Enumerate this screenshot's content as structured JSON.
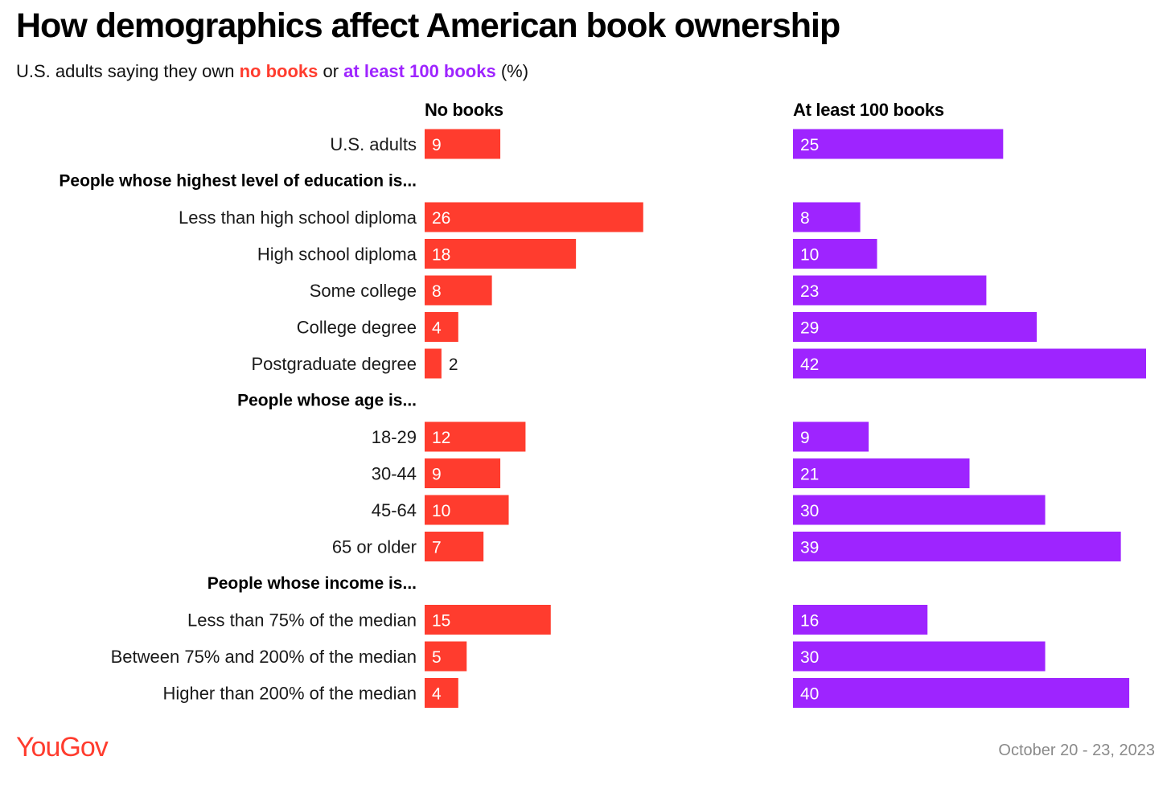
{
  "title": "How demographics affect American book ownership",
  "subtitle": {
    "prefix": "U.S. adults saying they own ",
    "red_text": "no books",
    "middle": " or ",
    "purple_text": "at least 100 books",
    "suffix": " (%)"
  },
  "colors": {
    "no_books": "#ff3c2e",
    "at_least_100": "#9e24ff"
  },
  "chart_data": {
    "type": "bar",
    "orientation": "horizontal",
    "title": "How demographics affect American book ownership",
    "unit": "%",
    "series": [
      {
        "name": "No books",
        "values": [
          9,
          26,
          18,
          8,
          4,
          2,
          12,
          9,
          10,
          7,
          15,
          5,
          4
        ]
      },
      {
        "name": "At least 100 books",
        "values": [
          25,
          8,
          10,
          23,
          29,
          42,
          9,
          21,
          30,
          39,
          16,
          30,
          40
        ]
      }
    ],
    "rows": [
      {
        "type": "item",
        "label": "U.S. adults",
        "idx": 0
      },
      {
        "type": "group",
        "label": "People whose highest level of education is..."
      },
      {
        "type": "item",
        "label": "Less than high school diploma",
        "idx": 1
      },
      {
        "type": "item",
        "label": "High school diploma",
        "idx": 2
      },
      {
        "type": "item",
        "label": "Some college",
        "idx": 3
      },
      {
        "type": "item",
        "label": "College degree",
        "idx": 4
      },
      {
        "type": "item",
        "label": "Postgraduate degree",
        "idx": 5
      },
      {
        "type": "group",
        "label": "People whose age is..."
      },
      {
        "type": "item",
        "label": "18-29",
        "idx": 6
      },
      {
        "type": "item",
        "label": "30-44",
        "idx": 7
      },
      {
        "type": "item",
        "label": "45-64",
        "idx": 8
      },
      {
        "type": "item",
        "label": "65 or older",
        "idx": 9
      },
      {
        "type": "group",
        "label": "People whose income is..."
      },
      {
        "type": "item",
        "label": "Less than 75% of the median",
        "idx": 10
      },
      {
        "type": "item",
        "label": "Between 75% and 200% of the median",
        "idx": 11
      },
      {
        "type": "item",
        "label": "Higher than 200% of the median",
        "idx": 12
      }
    ],
    "xlim": [
      0,
      42
    ]
  },
  "footer": {
    "brand": "YouGov",
    "date": "October 20 - 23, 2023"
  }
}
